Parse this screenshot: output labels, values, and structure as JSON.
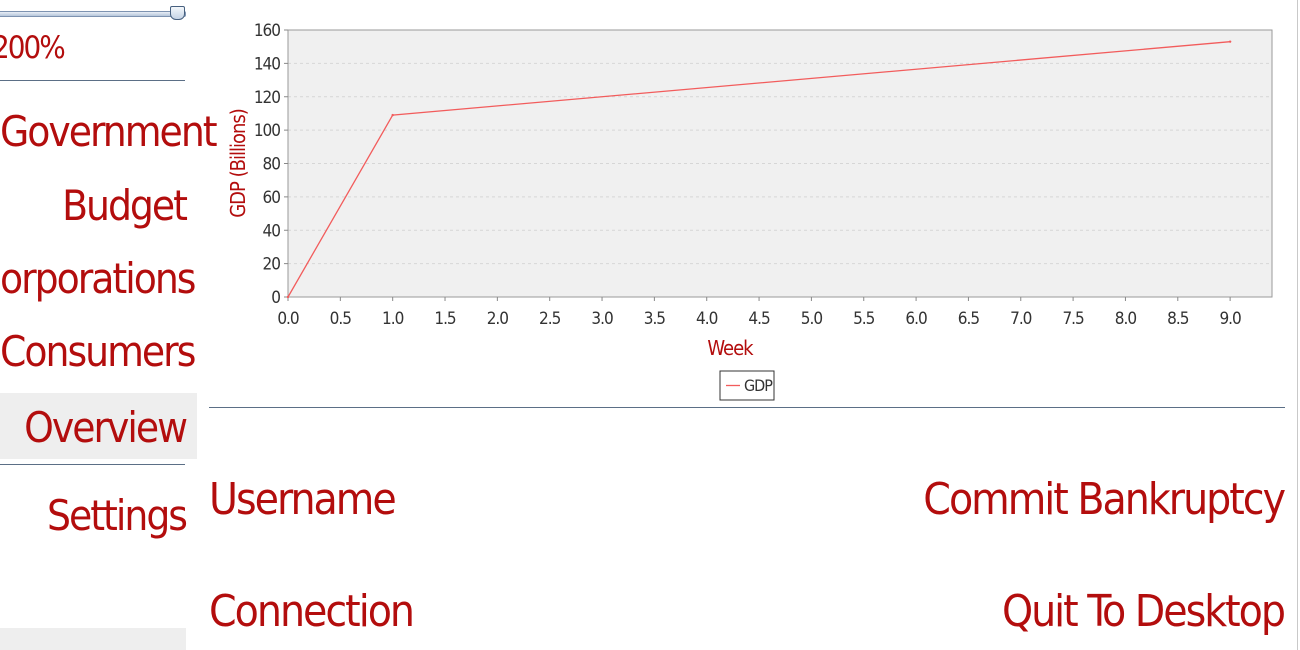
{
  "sidebar": {
    "zoom": {
      "value_label": "200%",
      "level": 1.0
    },
    "items": [
      {
        "label": "Government"
      },
      {
        "label": "Budget"
      },
      {
        "label": "orporations"
      },
      {
        "label": "Consumers"
      },
      {
        "label": "Overview",
        "active": true
      },
      {
        "label": "Settings"
      }
    ]
  },
  "main": {
    "left_actions": [
      {
        "label": "Username"
      },
      {
        "label": "Connection"
      }
    ],
    "right_actions": [
      {
        "label": "Commit Bankruptcy"
      },
      {
        "label": "Quit To Desktop"
      }
    ]
  },
  "colors": {
    "accent": "#b30d0d",
    "series_line": "#f25c5c",
    "plot_bg": "#f0f0f0",
    "divider": "#5b6f86"
  },
  "chart_data": {
    "type": "line",
    "title": "",
    "xlabel": "Week",
    "ylabel": "GDP (Billions)",
    "xlim": [
      0,
      9.4
    ],
    "ylim": [
      0,
      160
    ],
    "x_ticks": [
      "0.0",
      "0.5",
      "1.0",
      "1.5",
      "2.0",
      "2.5",
      "3.0",
      "3.5",
      "4.0",
      "4.5",
      "5.0",
      "5.5",
      "6.0",
      "6.5",
      "7.0",
      "7.5",
      "8.0",
      "8.5",
      "9.0"
    ],
    "y_ticks": [
      "0",
      "20",
      "40",
      "60",
      "80",
      "100",
      "120",
      "140",
      "160"
    ],
    "grid": true,
    "legend_position": "bottom-center",
    "series": [
      {
        "name": "GDP",
        "x": [
          0,
          1,
          9
        ],
        "y": [
          0,
          109,
          153
        ]
      }
    ]
  }
}
